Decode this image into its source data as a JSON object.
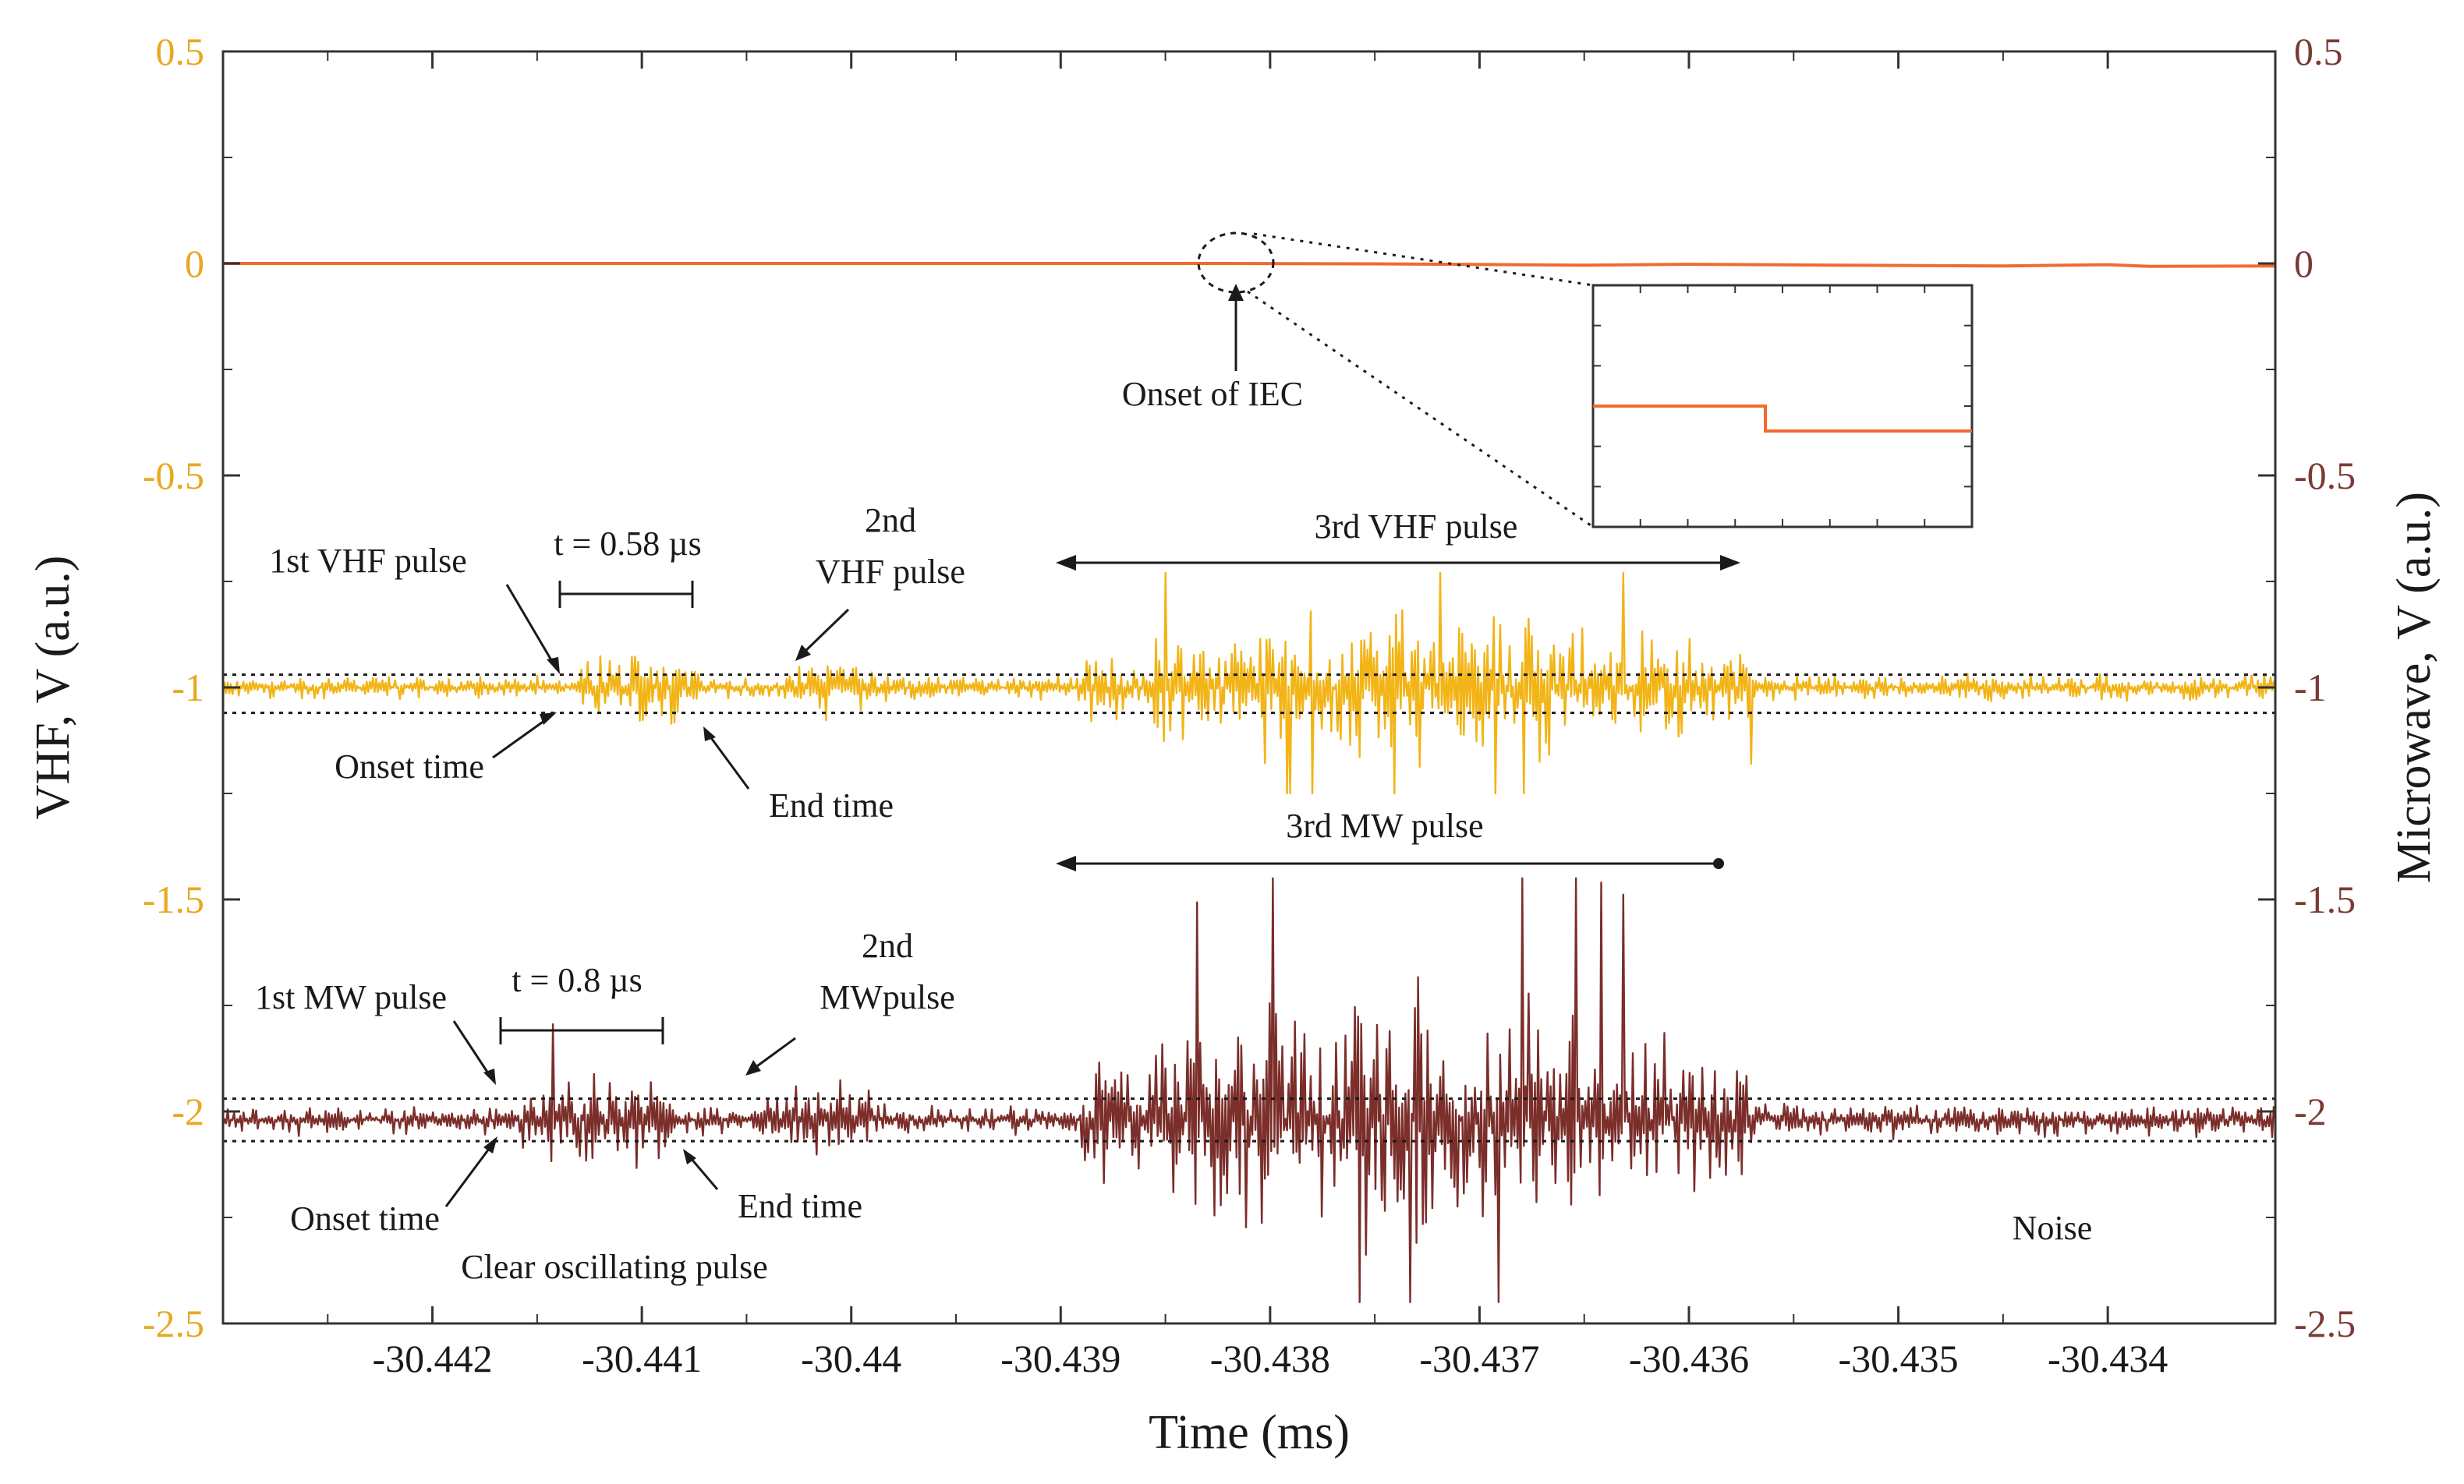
{
  "chart_data": {
    "type": "line",
    "xlabel": "Time (ms)",
    "ylabel_left": "VHF, V (a.u.)",
    "ylabel_right": "Microwave, V (a.u.)",
    "xlim": [
      -30.443,
      -30.4332
    ],
    "ylim": [
      -2.5,
      0.5
    ],
    "x_ticks": [
      -30.442,
      -30.441,
      -30.44,
      -30.439,
      -30.438,
      -30.437,
      -30.436,
      -30.435,
      -30.434
    ],
    "x_tick_labels": [
      "-30.442",
      "-30.441",
      "-30.44",
      "-30.439",
      "-30.438",
      "-30.437",
      "-30.436",
      "-30.435",
      "-30.434"
    ],
    "y_ticks": [
      0.5,
      0,
      -0.5,
      -1,
      -1.5,
      -2,
      -2.5
    ],
    "y_tick_labels": [
      "0.5",
      "0",
      "-0.5",
      "-1",
      "-1.5",
      "-2",
      "-2.5"
    ],
    "colors": {
      "vhf": "#f2b416",
      "microwave": "#7b2e2a",
      "iec": "#f26a2e",
      "left_axis": "#e8a820",
      "right_axis": "#7b3a34",
      "frame": "#333333"
    },
    "series": [
      {
        "name": "IEC",
        "baseline": 0,
        "onset_time": -30.4382,
        "points": [
          [
            -30.443,
            0.0
          ],
          [
            -30.4382,
            0.0
          ],
          [
            -30.4375,
            -0.001
          ],
          [
            -30.4365,
            -0.004
          ],
          [
            -30.436,
            -0.002
          ],
          [
            -30.4353,
            -0.004
          ],
          [
            -30.4345,
            -0.006
          ],
          [
            -30.434,
            -0.003
          ],
          [
            -30.4338,
            -0.007
          ],
          [
            -30.4332,
            -0.006
          ]
        ]
      },
      {
        "name": "VHF",
        "baseline": -1,
        "noise_band": [
          -0.97,
          -1.06
        ],
        "segments": [
          {
            "label": "noise",
            "start": -30.443,
            "end": -30.4413,
            "amplitude": 0.035
          },
          {
            "label": "1st VHF pulse",
            "start": -30.4413,
            "end": -30.4407,
            "amplitude": 0.1
          },
          {
            "label": "noise",
            "start": -30.4407,
            "end": -30.4403,
            "amplitude": 0.04
          },
          {
            "label": "2nd VHF pulse",
            "start": -30.4403,
            "end": -30.4399,
            "amplitude": 0.08
          },
          {
            "label": "noise",
            "start": -30.4399,
            "end": -30.4389,
            "amplitude": 0.04
          },
          {
            "label": "3rd VHF pulse",
            "start": -30.4389,
            "end": -30.4357,
            "amplitude": 0.19
          },
          {
            "label": "noise",
            "start": -30.4357,
            "end": -30.4332,
            "amplitude": 0.04
          }
        ],
        "peak_max": -0.73,
        "peak_min": -1.25
      },
      {
        "name": "Microwave",
        "baseline": -2.02,
        "noise_band": [
          -1.97,
          -2.07
        ],
        "segments": [
          {
            "label": "noise",
            "start": -30.443,
            "end": -30.4416,
            "amplitude": 0.04
          },
          {
            "label": "1st MW pulse",
            "start": -30.4416,
            "end": -30.4408,
            "amplitude": 0.13
          },
          {
            "label": "noise",
            "start": -30.4408,
            "end": -30.4404,
            "amplitude": 0.045
          },
          {
            "label": "2nd MW pulse",
            "start": -30.4404,
            "end": -30.4399,
            "amplitude": 0.12
          },
          {
            "label": "noise",
            "start": -30.4399,
            "end": -30.4389,
            "amplitude": 0.045
          },
          {
            "label": "3rd MW pulse",
            "start": -30.4389,
            "end": -30.4357,
            "amplitude": 0.32
          },
          {
            "label": "noise",
            "start": -30.4357,
            "end": -30.4332,
            "amplitude": 0.05
          }
        ],
        "peak_max": -1.45,
        "peak_min": -2.45
      }
    ],
    "annotations": {
      "onset_iec": "Onset of IEC",
      "first_vhf": "1st VHF pulse",
      "vhf_duration": "t = 0.58 µs",
      "second_vhf_line1": "2nd",
      "second_vhf_line2": "VHF pulse",
      "third_vhf": "3rd VHF pulse",
      "vhf_onset": "Onset time",
      "vhf_end": "End  time",
      "first_mw": "1st MW pulse",
      "mw_duration": "t = 0.8  µs",
      "second_mw_line1": "2nd",
      "second_mw_line2": "MWpulse",
      "third_mw": "3rd MW pulse",
      "mw_onset": "Onset time",
      "mw_end": "End  time",
      "clear_pulse": "Clear oscillating pulse",
      "noise": "Noise"
    }
  }
}
